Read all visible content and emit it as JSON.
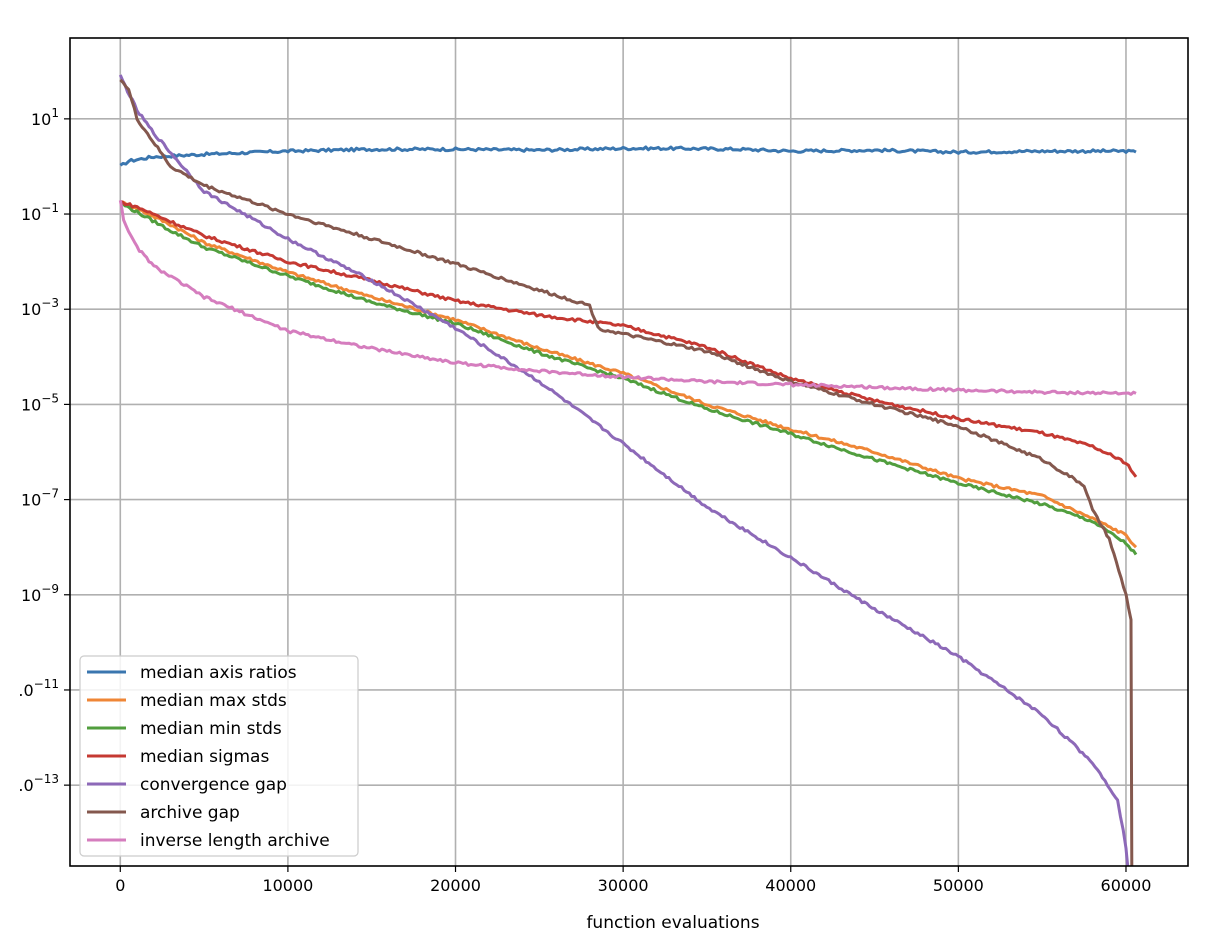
{
  "chart_data": {
    "type": "line",
    "title": "",
    "xlabel": "function evaluations",
    "ylabel": "",
    "y_scale": "log",
    "xlim": [
      -3000,
      63700
    ],
    "ylim": [
      2e-15,
      500
    ],
    "x_ticks": [
      0,
      10000,
      20000,
      30000,
      40000,
      50000,
      60000
    ],
    "x_tick_labels": [
      "0",
      "10000",
      "20000",
      "30000",
      "40000",
      "50000",
      "60000"
    ],
    "y_ticks": [
      {
        "value": 10,
        "base": "10",
        "exp": "1",
        "clipped_prefix": ""
      },
      {
        "value": 0.1,
        "base": "10",
        "exp": "−1",
        "clipped_prefix": ""
      },
      {
        "value": 0.001,
        "base": "10",
        "exp": "−3",
        "clipped_prefix": ""
      },
      {
        "value": 1e-05,
        "base": "10",
        "exp": "−5",
        "clipped_prefix": ""
      },
      {
        "value": 1e-07,
        "base": "10",
        "exp": "−7",
        "clipped_prefix": ""
      },
      {
        "value": 1e-09,
        "base": "10",
        "exp": "−9",
        "clipped_prefix": ""
      },
      {
        "value": 1e-11,
        "base": ".0",
        "exp": "−11",
        "clipped_prefix": "partial"
      },
      {
        "value": 1e-13,
        "base": ".0",
        "exp": "−13",
        "clipped_prefix": "partial"
      }
    ],
    "grid": true,
    "legend_position": "lower-left",
    "series": [
      {
        "name": "median axis ratios",
        "color": "#3a76af",
        "points": [
          [
            0,
            1
          ],
          [
            500,
            1.3
          ],
          [
            2000,
            1.6
          ],
          [
            5000,
            1.8
          ],
          [
            10000,
            2.1
          ],
          [
            15000,
            2.3
          ],
          [
            20000,
            2.3
          ],
          [
            25000,
            2.2
          ],
          [
            30000,
            2.4
          ],
          [
            33000,
            2.4
          ],
          [
            37000,
            2.3
          ],
          [
            40000,
            2.1
          ],
          [
            45000,
            2.2
          ],
          [
            50000,
            2.0
          ],
          [
            55000,
            2.1
          ],
          [
            60000,
            2.1
          ],
          [
            60600,
            2.0
          ]
        ]
      },
      {
        "name": "median max stds",
        "color": "#ef8636",
        "points": [
          [
            0,
            0.18
          ],
          [
            1000,
            0.13
          ],
          [
            3000,
            0.06
          ],
          [
            5000,
            0.025
          ],
          [
            10000,
            0.006
          ],
          [
            15000,
            0.0018
          ],
          [
            20000,
            0.0006
          ],
          [
            25000,
            0.00015
          ],
          [
            30000,
            4.5e-05
          ],
          [
            35000,
            1e-05
          ],
          [
            40000,
            3e-06
          ],
          [
            45000,
            1e-06
          ],
          [
            50000,
            2.8e-07
          ],
          [
            55000,
            1.2e-07
          ],
          [
            58000,
            4e-08
          ],
          [
            60000,
            1.8e-08
          ],
          [
            60600,
            1e-08
          ]
        ]
      },
      {
        "name": "median min stds",
        "color": "#519e3e",
        "points": [
          [
            0,
            0.17
          ],
          [
            1000,
            0.11
          ],
          [
            3000,
            0.045
          ],
          [
            5000,
            0.02
          ],
          [
            10000,
            0.005
          ],
          [
            15000,
            0.0014
          ],
          [
            20000,
            0.0005
          ],
          [
            25000,
            0.00012
          ],
          [
            30000,
            3.5e-05
          ],
          [
            35000,
            8e-06
          ],
          [
            40000,
            2.4e-06
          ],
          [
            45000,
            7e-07
          ],
          [
            50000,
            2.2e-07
          ],
          [
            55000,
            8e-08
          ],
          [
            58000,
            3.5e-08
          ],
          [
            60000,
            1.2e-08
          ],
          [
            60600,
            7e-09
          ]
        ]
      },
      {
        "name": "median sigmas",
        "color": "#c53932",
        "points": [
          [
            0,
            0.18
          ],
          [
            1000,
            0.14
          ],
          [
            3000,
            0.07
          ],
          [
            5000,
            0.035
          ],
          [
            10000,
            0.01
          ],
          [
            15000,
            0.004
          ],
          [
            20000,
            0.0015
          ],
          [
            25000,
            0.00075
          ],
          [
            30000,
            0.00045
          ],
          [
            35000,
            0.00016
          ],
          [
            40000,
            3.5e-05
          ],
          [
            45000,
            1.2e-05
          ],
          [
            50000,
            5e-06
          ],
          [
            55000,
            2.5e-06
          ],
          [
            58000,
            1.3e-06
          ],
          [
            60000,
            6e-07
          ],
          [
            60600,
            3e-07
          ]
        ]
      },
      {
        "name": "convergence gap",
        "color": "#8d69b8",
        "points": [
          [
            0,
            80
          ],
          [
            1000,
            15
          ],
          [
            2000,
            5
          ],
          [
            5000,
            0.3
          ],
          [
            10000,
            0.03
          ],
          [
            15000,
            0.004
          ],
          [
            20000,
            0.0004
          ],
          [
            25000,
            3e-05
          ],
          [
            30000,
            1.5e-06
          ],
          [
            35000,
            7e-08
          ],
          [
            40000,
            6e-09
          ],
          [
            45000,
            5e-10
          ],
          [
            50000,
            5e-11
          ],
          [
            55000,
            3e-12
          ],
          [
            58000,
            3e-13
          ],
          [
            59500,
            5e-14
          ],
          [
            60000,
            5e-15
          ],
          [
            60100,
            2e-15
          ]
        ]
      },
      {
        "name": "archive gap",
        "color": "#84584e",
        "points": [
          [
            0,
            70
          ],
          [
            500,
            40
          ],
          [
            1000,
            10
          ],
          [
            3000,
            1.0
          ],
          [
            5000,
            0.4
          ],
          [
            10000,
            0.1
          ],
          [
            15000,
            0.03
          ],
          [
            20000,
            0.009
          ],
          [
            25000,
            0.0025
          ],
          [
            28000,
            0.0012
          ],
          [
            28500,
            0.0004
          ],
          [
            30000,
            0.0003
          ],
          [
            35000,
            0.00013
          ],
          [
            40000,
            3e-05
          ],
          [
            45000,
            1e-05
          ],
          [
            50000,
            3.5e-06
          ],
          [
            55000,
            7e-07
          ],
          [
            57500,
            2e-07
          ],
          [
            58000,
            6e-08
          ],
          [
            59000,
            1.5e-08
          ],
          [
            60000,
            1e-09
          ],
          [
            60300,
            3e-10
          ],
          [
            60350,
            2e-15
          ]
        ]
      },
      {
        "name": "inverse length archive",
        "color": "#d57dbe",
        "points": [
          [
            0,
            0.2
          ],
          [
            200,
            0.08
          ],
          [
            500,
            0.04
          ],
          [
            1000,
            0.02
          ],
          [
            2000,
            0.008
          ],
          [
            5000,
            0.0018
          ],
          [
            10000,
            0.00035
          ],
          [
            15000,
            0.00015
          ],
          [
            20000,
            7.5e-05
          ],
          [
            25000,
            5e-05
          ],
          [
            30000,
            3.8e-05
          ],
          [
            35000,
            3e-05
          ],
          [
            40000,
            2.6e-05
          ],
          [
            45000,
            2.3e-05
          ],
          [
            50000,
            2e-05
          ],
          [
            55000,
            1.8e-05
          ],
          [
            60600,
            1.7e-05
          ]
        ]
      }
    ]
  }
}
